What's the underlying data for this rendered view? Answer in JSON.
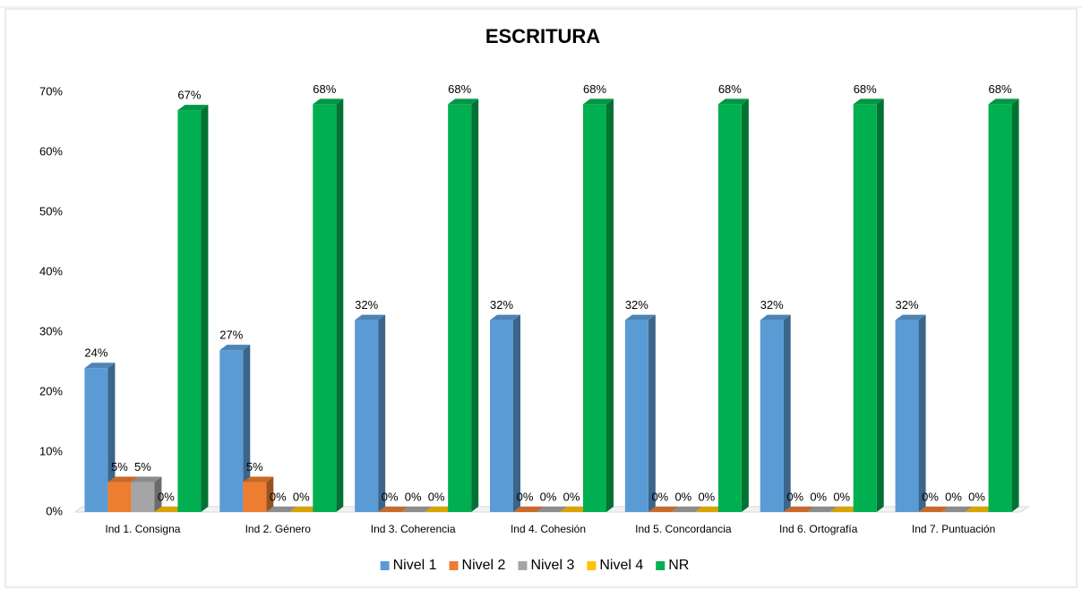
{
  "chart_data": {
    "type": "bar3d",
    "title": "ESCRITURA",
    "categories": [
      "Ind 1. Consigna",
      "Ind 2. Género",
      "Ind 3. Coherencia",
      "Ind 4. Cohesión",
      "Ind 5. Concordancia",
      "Ind 6. Ortografía",
      "Ind 7. Puntuación"
    ],
    "series": [
      {
        "name": "Nivel 1",
        "color": "#5b9bd5",
        "values": [
          24,
          27,
          32,
          32,
          32,
          32,
          32
        ],
        "value_labels": [
          "24%",
          "27%",
          "32%",
          "32%",
          "32%",
          "32%",
          "32%"
        ]
      },
      {
        "name": "Nivel 2",
        "color": "#ed7d31",
        "values": [
          5,
          5,
          0,
          0,
          0,
          0,
          0
        ],
        "value_labels": [
          "5%",
          "5%",
          "0%",
          "0%",
          "0%",
          "0%",
          "0%"
        ]
      },
      {
        "name": "Nivel 3",
        "color": "#a5a5a5",
        "values": [
          5,
          0,
          0,
          0,
          0,
          0,
          0
        ],
        "value_labels": [
          "5%",
          "0%",
          "0%",
          "0%",
          "0%",
          "0%",
          "0%"
        ]
      },
      {
        "name": "Nivel 4",
        "color": "#ffc000",
        "values": [
          0,
          0,
          0,
          0,
          0,
          0,
          0
        ],
        "value_labels": [
          "0%",
          "0%",
          "0%",
          "0%",
          "0%",
          "0%",
          "0%"
        ]
      },
      {
        "name": "NR",
        "color": "#00b050",
        "values": [
          67,
          68,
          68,
          68,
          68,
          68,
          68
        ],
        "value_labels": [
          "67%",
          "68%",
          "68%",
          "68%",
          "68%",
          "68%",
          "68%"
        ]
      }
    ],
    "ylim": [
      0,
      70
    ],
    "yticks": [
      {
        "value": 0,
        "label": "0%"
      },
      {
        "value": 10,
        "label": "10%"
      },
      {
        "value": 20,
        "label": "20%"
      },
      {
        "value": 30,
        "label": "30%"
      },
      {
        "value": 40,
        "label": "40%"
      },
      {
        "value": 50,
        "label": "50%"
      },
      {
        "value": 60,
        "label": "60%"
      },
      {
        "value": 70,
        "label": "70%"
      }
    ],
    "grid": false,
    "legend": "bottom"
  }
}
